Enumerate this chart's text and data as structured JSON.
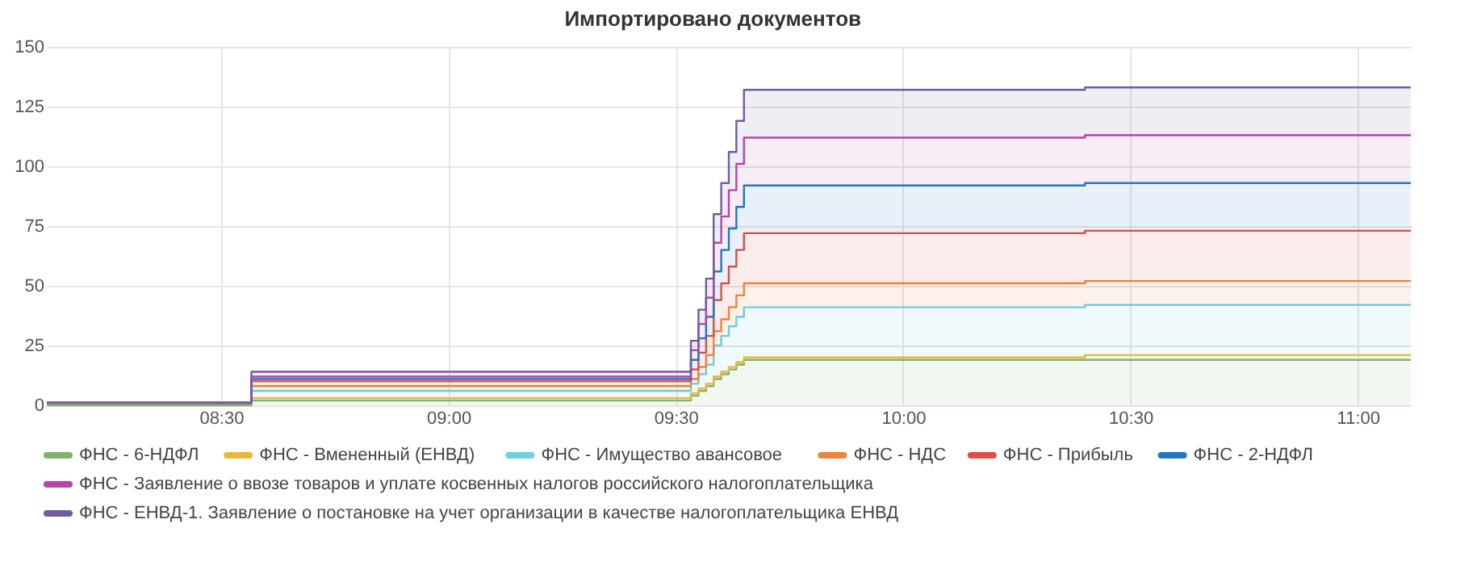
{
  "chart_data": {
    "type": "area",
    "title": "Импортировано документов",
    "x": [
      8.1167,
      8.5667,
      9.5333,
      9.55,
      9.5667,
      9.5833,
      9.6,
      9.6167,
      9.6333,
      9.65,
      10.4,
      11.1167
    ],
    "xlim": [
      8.1167,
      11.1167
    ],
    "xticks": [
      {
        "value": 8.5,
        "label": "08:30"
      },
      {
        "value": 9,
        "label": "09:00"
      },
      {
        "value": 9.5,
        "label": "09:30"
      },
      {
        "value": 10,
        "label": "10:00"
      },
      {
        "value": 10.5,
        "label": "10:30"
      },
      {
        "value": 11,
        "label": "11:00"
      }
    ],
    "ylim": [
      0,
      150
    ],
    "yticks": [
      0,
      25,
      50,
      75,
      100,
      125,
      150
    ],
    "stacked": true,
    "grid": true,
    "legend": "bottom",
    "line_style": "solid",
    "marker": "none",
    "series": [
      {
        "name": "ФНС - 6-НДФЛ",
        "color": "#7eb26d",
        "values": [
          0,
          2,
          4,
          6,
          8,
          11,
          13,
          15,
          17,
          19,
          19,
          19
        ]
      },
      {
        "name": "ФНС - Вмененный (ЕНВД)",
        "color": "#eab839",
        "values": [
          1,
          1,
          1,
          1,
          1,
          1,
          1,
          1,
          1,
          1,
          2,
          2
        ]
      },
      {
        "name": "ФНС - Имущество авансовое",
        "color": "#6ed0e0",
        "values": [
          0,
          3,
          4,
          6,
          8,
          13,
          15,
          17,
          19,
          21,
          21,
          21
        ]
      },
      {
        "name": "ФНС - НДС",
        "color": "#ef843c",
        "values": [
          0,
          2,
          2,
          3,
          4,
          6,
          7,
          8,
          9,
          10,
          10,
          10
        ]
      },
      {
        "name": "ФНС - Прибыль",
        "color": "#e24d42",
        "values": [
          0,
          2,
          4,
          6,
          8,
          13,
          15,
          17,
          19,
          21,
          21,
          21
        ]
      },
      {
        "name": "ФНС - 2-НДФЛ",
        "color": "#1f78c1",
        "values": [
          0,
          1,
          4,
          6,
          8,
          12,
          14,
          16,
          18,
          20,
          20,
          20
        ]
      },
      {
        "name": "ФНС - Заявление о ввозе товаров и уплате косвенных налогов российского налогоплательщика",
        "color": "#ba43a9",
        "values": [
          0,
          1,
          4,
          6,
          8,
          12,
          14,
          16,
          18,
          20,
          20,
          20
        ]
      },
      {
        "name": "ФНС - ЕНВД-1. Заявление о постановке на учет организации в качестве налогоплательщика ЕНВД",
        "color": "#705da0",
        "values": [
          0,
          2,
          4,
          6,
          8,
          12,
          14,
          16,
          18,
          20,
          20,
          20
        ]
      }
    ]
  }
}
